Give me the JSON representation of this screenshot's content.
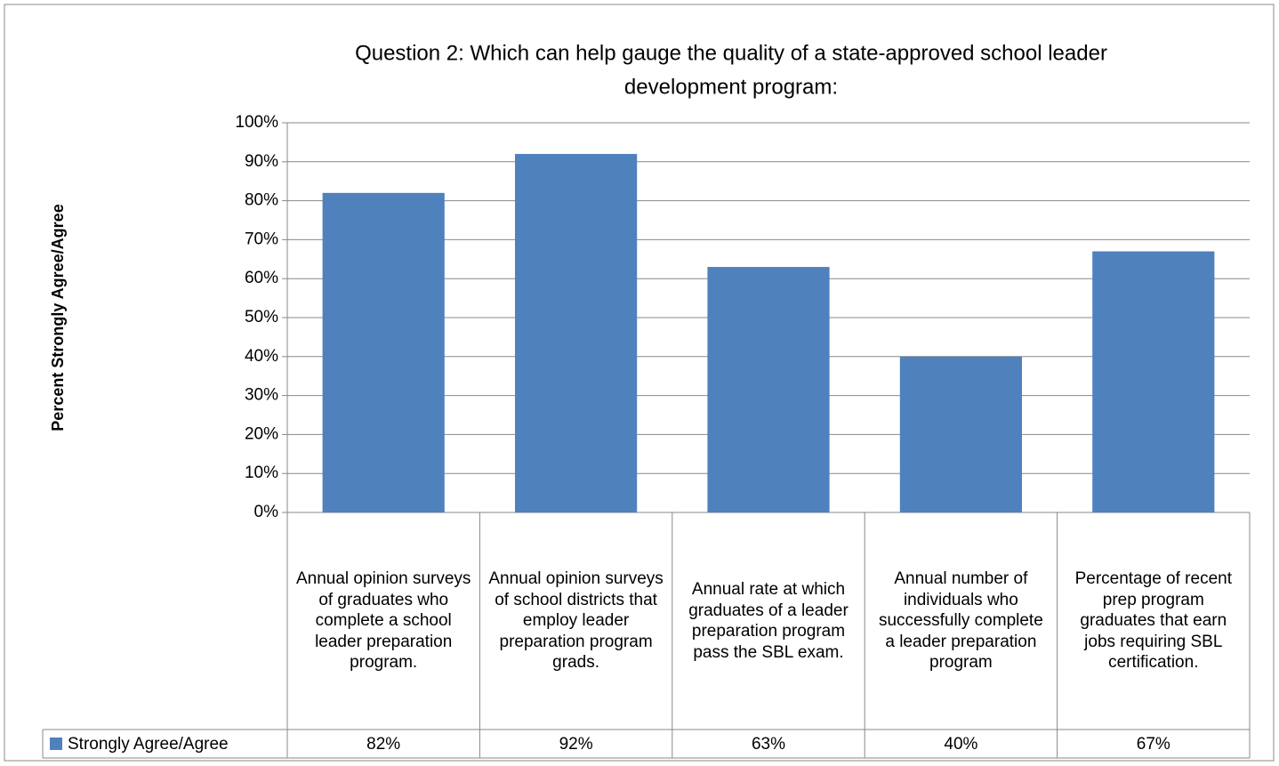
{
  "chart_data": {
    "type": "bar",
    "title": [
      "Question 2: Which can help gauge the quality of a state-approved school leader",
      "development program:"
    ],
    "y_label": "Percent Strongly Agree/Agree",
    "categories": [
      "Annual opinion surveys of graduates who complete a school leader preparation program.",
      "Annual opinion surveys of school districts that employ leader preparation program grads.",
      "Annual rate at which graduates of a leader preparation program pass the SBL exam.",
      "Annual number of individuals who successfully complete a leader preparation program",
      "Percentage of recent prep program graduates that earn jobs requiring SBL certification."
    ],
    "series": [
      {
        "name": "Strongly Agree/Agree",
        "color": "#4f81bd",
        "values": [
          82,
          92,
          63,
          40,
          67
        ],
        "value_labels": [
          "82%",
          "92%",
          "63%",
          "40%",
          "67%"
        ]
      }
    ],
    "ylim": [
      0,
      100
    ],
    "yticks": [
      {
        "value": 0,
        "label": "0%"
      },
      {
        "value": 10,
        "label": "10%"
      },
      {
        "value": 20,
        "label": "20%"
      },
      {
        "value": 30,
        "label": "30%"
      },
      {
        "value": 40,
        "label": "40%"
      },
      {
        "value": 50,
        "label": "50%"
      },
      {
        "value": 60,
        "label": "60%"
      },
      {
        "value": 70,
        "label": "70%"
      },
      {
        "value": 80,
        "label": "80%"
      },
      {
        "value": 90,
        "label": "90%"
      },
      {
        "value": 100,
        "label": "100%"
      }
    ],
    "grid": true
  }
}
